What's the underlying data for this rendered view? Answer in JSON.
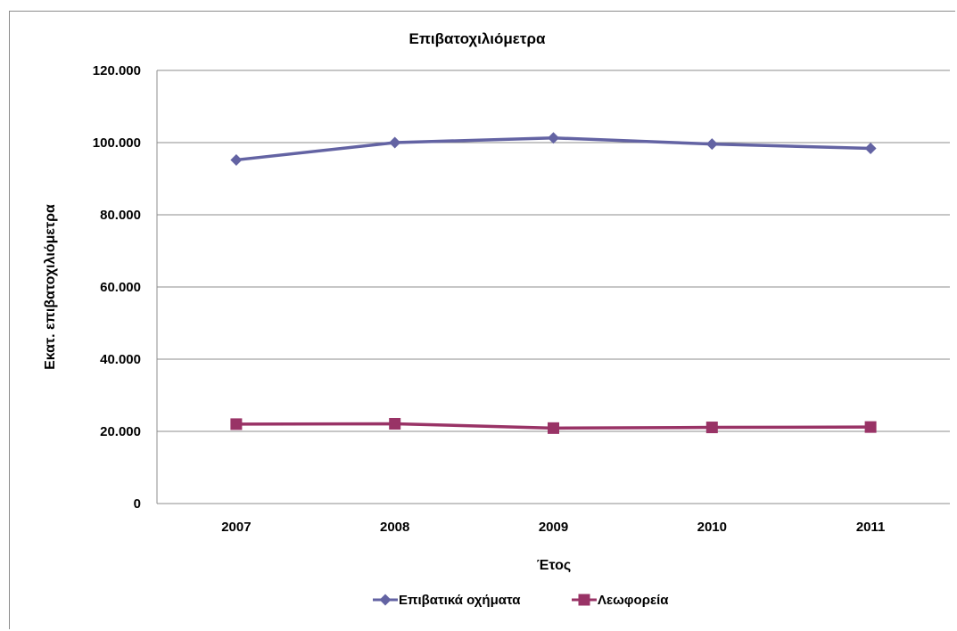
{
  "chart_data": {
    "type": "line",
    "title": "Επιβατοχιλιόμετρα",
    "xlabel": "Έτος",
    "ylabel": "Εκατ. επιβατοχιλιόμετρα",
    "categories": [
      "2007",
      "2008",
      "2009",
      "2010",
      "2011"
    ],
    "y_ticks": [
      "0",
      "20.000",
      "40.000",
      "60.000",
      "80.000",
      "100.000",
      "120.000"
    ],
    "ylim": [
      0,
      120000
    ],
    "grid": true,
    "legend_position": "bottom",
    "series": [
      {
        "name": "Επιβατικά οχήματα",
        "color": "#6363a3",
        "marker": "diamond",
        "values": [
          95200,
          100000,
          101300,
          99600,
          98400
        ]
      },
      {
        "name": "Λεωφορεία",
        "color": "#993366",
        "marker": "square",
        "values": [
          22000,
          22100,
          20900,
          21100,
          21200
        ]
      }
    ]
  }
}
